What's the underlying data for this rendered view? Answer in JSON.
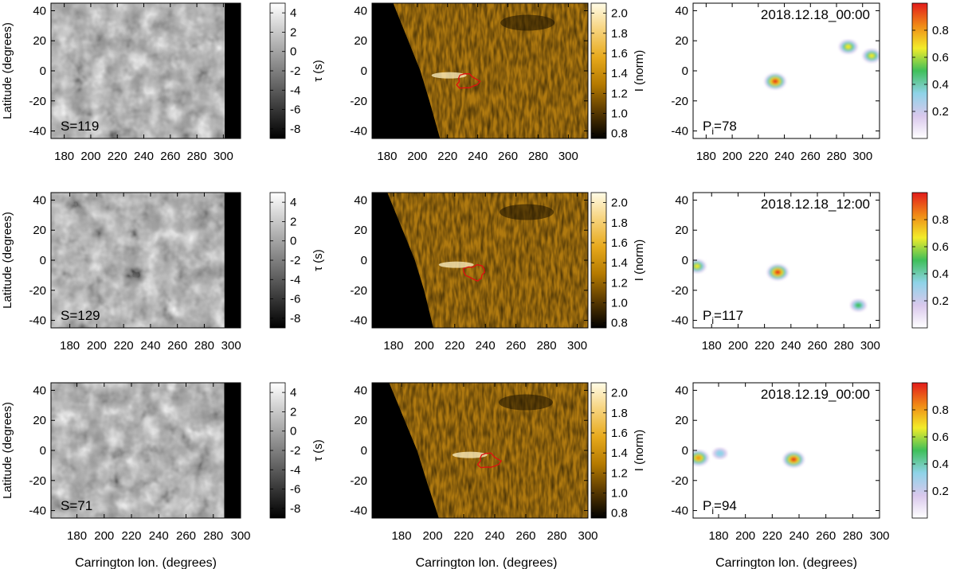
{
  "figure": {
    "ylabel": "Latitude (degrees)",
    "xlabel": "Carrington lon. (degrees)",
    "colorbars": {
      "tau": {
        "label": "τ (s)",
        "ticks": [
          4,
          2,
          0,
          -2,
          -4,
          -6,
          -8
        ],
        "range": [
          -9,
          5
        ],
        "colors": [
          "#000000",
          "#ffffff"
        ]
      },
      "intensity": {
        "label": "I (norm)",
        "ticks": [
          2.0,
          1.8,
          1.6,
          1.4,
          1.2,
          1.0,
          0.8
        ],
        "range": [
          0.75,
          2.1
        ],
        "colors": [
          "#000000",
          "#5a3a00",
          "#b57a00",
          "#e7a91c",
          "#f6d27a",
          "#fffbe6"
        ]
      },
      "probability": {
        "ticks": [
          0.8,
          0.6,
          0.4,
          0.2
        ],
        "range": [
          0,
          1
        ],
        "colors": [
          "#ffffff",
          "#d9c8ec",
          "#8fd3e8",
          "#3fbf5a",
          "#f2ec2a",
          "#f08a16",
          "#e21b1b"
        ]
      }
    }
  },
  "chart_data": [
    {
      "row": 1,
      "type": "heatmap",
      "map": "tau",
      "annotation": "S=119",
      "xlim": [
        170,
        313
      ],
      "ylim": [
        -45,
        45
      ],
      "xticks": [
        180,
        200,
        220,
        240,
        260,
        280,
        300
      ],
      "yticks": [
        40,
        20,
        0,
        -20,
        -40
      ],
      "black_region_lon": [
        301,
        313
      ]
    },
    {
      "row": 1,
      "type": "heatmap",
      "map": "intensity",
      "xlim": [
        170,
        313
      ],
      "ylim": [
        -45,
        45
      ],
      "xticks": [
        180,
        200,
        220,
        240,
        260,
        280,
        300
      ],
      "yticks": [
        40,
        20,
        0,
        -20,
        -40
      ],
      "limb_lon": [
        [
          45,
          184
        ],
        [
          20,
          194
        ],
        [
          0,
          202
        ],
        [
          -20,
          208
        ],
        [
          -45,
          215
        ]
      ],
      "contour_center": [
        233,
        -7
      ]
    },
    {
      "row": 1,
      "type": "heatmap",
      "map": "probability",
      "title": "2018.12.18_00:00",
      "annotation": "P_i=78",
      "xlim": [
        170,
        313
      ],
      "ylim": [
        -45,
        45
      ],
      "xticks": [
        180,
        200,
        220,
        240,
        260,
        280,
        300
      ],
      "yticks": [
        40,
        20,
        0,
        -20,
        -40
      ],
      "blobs": [
        {
          "lon": 233,
          "lat": -7,
          "value": 0.97
        },
        {
          "lon": 289,
          "lat": 16,
          "value": 0.7
        },
        {
          "lon": 307,
          "lat": 10,
          "value": 0.65
        }
      ]
    },
    {
      "row": 2,
      "type": "heatmap",
      "map": "tau",
      "annotation": "S=129",
      "xlim": [
        166,
        307
      ],
      "ylim": [
        -45,
        45
      ],
      "xticks": [
        180,
        200,
        220,
        240,
        260,
        280,
        300
      ],
      "yticks": [
        40,
        20,
        0,
        -20,
        -40
      ],
      "black_region_lon": [
        295,
        307
      ]
    },
    {
      "row": 2,
      "type": "heatmap",
      "map": "intensity",
      "xlim": [
        166,
        307
      ],
      "ylim": [
        -45,
        45
      ],
      "xticks": [
        180,
        200,
        220,
        240,
        260,
        280,
        300
      ],
      "yticks": [
        40,
        20,
        0,
        -20,
        -40
      ],
      "limb_lon": [
        [
          45,
          176
        ],
        [
          20,
          186
        ],
        [
          0,
          194
        ],
        [
          -20,
          200
        ],
        [
          -45,
          206
        ]
      ],
      "contour_center": [
        233,
        -8
      ]
    },
    {
      "row": 2,
      "type": "heatmap",
      "map": "probability",
      "title": "2018.12.18_12:00",
      "annotation": "P_i=117",
      "xlim": [
        166,
        307
      ],
      "ylim": [
        -45,
        45
      ],
      "xticks": [
        180,
        200,
        220,
        240,
        260,
        280,
        300
      ],
      "yticks": [
        40,
        20,
        0,
        -20,
        -40
      ],
      "blobs": [
        {
          "lon": 230,
          "lat": -8,
          "value": 0.97
        },
        {
          "lon": 169,
          "lat": -4,
          "value": 0.62
        },
        {
          "lon": 291,
          "lat": -30,
          "value": 0.45
        }
      ]
    },
    {
      "row": 3,
      "type": "heatmap",
      "map": "tau",
      "annotation": "S=71",
      "xlim": [
        161,
        300
      ],
      "ylim": [
        -45,
        45
      ],
      "xticks": [
        180,
        200,
        220,
        240,
        260,
        280,
        300
      ],
      "yticks": [
        40,
        20,
        0,
        -20,
        -40
      ],
      "black_region_lon": [
        288,
        300
      ]
    },
    {
      "row": 3,
      "type": "heatmap",
      "map": "intensity",
      "xlim": [
        161,
        300
      ],
      "ylim": [
        -45,
        45
      ],
      "xticks": [
        180,
        200,
        220,
        240,
        260,
        280,
        300
      ],
      "yticks": [
        40,
        20,
        0,
        -20,
        -40
      ],
      "limb_lon": [
        [
          45,
          172
        ],
        [
          20,
          182
        ],
        [
          0,
          190
        ],
        [
          -20,
          196
        ],
        [
          -45,
          204
        ]
      ],
      "contour_center": [
        236,
        -7
      ]
    },
    {
      "row": 3,
      "type": "heatmap",
      "map": "probability",
      "title": "2018.12.19_00:00",
      "annotation": "P_i=94",
      "xlim": [
        161,
        300
      ],
      "ylim": [
        -45,
        45
      ],
      "xticks": [
        180,
        200,
        220,
        240,
        260,
        280,
        300
      ],
      "yticks": [
        40,
        20,
        0,
        -20,
        -40
      ],
      "blobs": [
        {
          "lon": 236,
          "lat": -6,
          "value": 0.97
        },
        {
          "lon": 165,
          "lat": -5,
          "value": 0.9
        },
        {
          "lon": 181,
          "lat": -2,
          "value": 0.3
        }
      ]
    }
  ]
}
